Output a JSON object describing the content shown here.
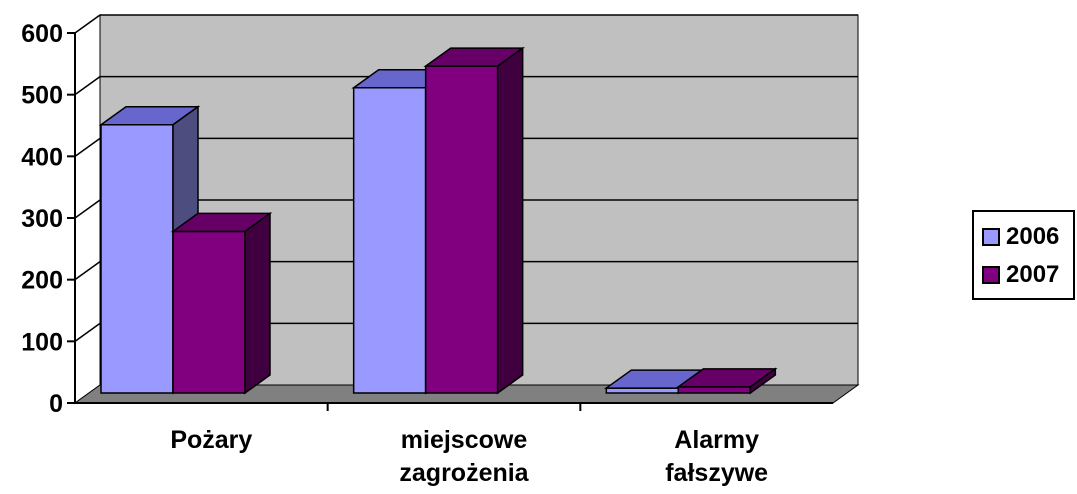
{
  "chart_data": {
    "type": "bar",
    "title": "",
    "xlabel": "",
    "ylabel": "",
    "categories": [
      [
        "Pożary"
      ],
      [
        "miejscowe",
        "zagrożenia"
      ],
      [
        "Alarmy",
        "fałszywe"
      ]
    ],
    "series": [
      {
        "name": "2006",
        "values": [
          435,
          495,
          8
        ],
        "color": "#9999ff",
        "top_color": "#6666cc",
        "side_color": "#4d4d80"
      },
      {
        "name": "2007",
        "values": [
          262,
          530,
          10
        ],
        "color": "#800080",
        "top_color": "#660066",
        "side_color": "#400040"
      }
    ],
    "ylim": [
      0,
      600
    ],
    "yticks": [
      "0",
      "100",
      "200",
      "300",
      "400",
      "500",
      "600"
    ],
    "grid": true,
    "legend_position": "right",
    "wall_color": "#c0c0c0",
    "floor_color": "#808080"
  }
}
